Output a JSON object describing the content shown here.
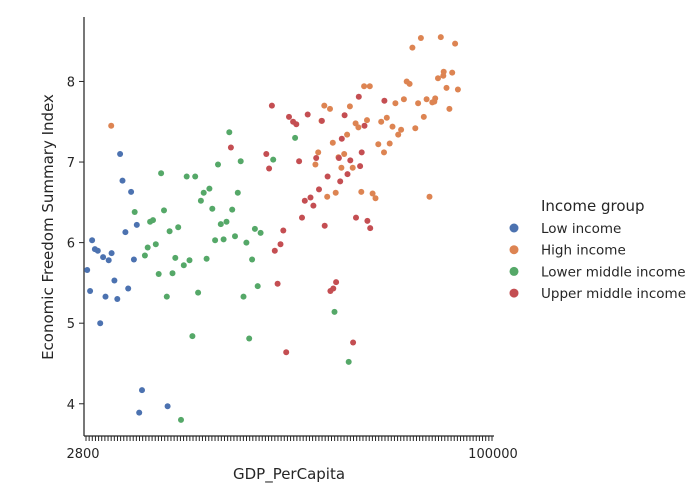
{
  "chart_data": {
    "type": "scatter",
    "title": "",
    "xlabel": "GDP_PerCapita",
    "ylabel": "Economic Freedom Summary Index",
    "xlim": [
      0,
      100
    ],
    "ylim": [
      3.6,
      8.8
    ],
    "y_ticks": [
      4,
      5,
      6,
      7,
      8
    ],
    "x_tick_labels": [
      "2800",
      "100000"
    ],
    "x_tick_count": 130,
    "grid": false,
    "legend_title": "Income group",
    "legend_position": "right",
    "series": [
      {
        "name": "Low income",
        "color": "#4c72b0",
        "points": [
          [
            0.3,
            5.66
          ],
          [
            1.0,
            5.4
          ],
          [
            1.5,
            6.03
          ],
          [
            2.2,
            5.92
          ],
          [
            2.9,
            5.9
          ],
          [
            3.5,
            5.0
          ],
          [
            4.2,
            5.82
          ],
          [
            4.8,
            5.33
          ],
          [
            5.6,
            5.78
          ],
          [
            6.3,
            5.87
          ],
          [
            7.0,
            5.53
          ],
          [
            7.7,
            5.3
          ],
          [
            8.4,
            7.1
          ],
          [
            9.0,
            6.77
          ],
          [
            9.7,
            6.13
          ],
          [
            10.4,
            5.43
          ],
          [
            11.1,
            6.63
          ],
          [
            11.8,
            5.79
          ],
          [
            12.5,
            6.22
          ],
          [
            13.1,
            3.89
          ],
          [
            13.8,
            4.17
          ],
          [
            20.1,
            3.97
          ]
        ]
      },
      {
        "name": "High income",
        "color": "#dd8452",
        "points": [
          [
            6.2,
            7.45
          ],
          [
            56.5,
            6.97
          ],
          [
            57.2,
            7.12
          ],
          [
            58.0,
            7.51
          ],
          [
            58.7,
            7.7
          ],
          [
            59.4,
            6.57
          ],
          [
            60.1,
            7.66
          ],
          [
            60.8,
            7.24
          ],
          [
            61.5,
            6.62
          ],
          [
            62.2,
            7.06
          ],
          [
            62.9,
            6.93
          ],
          [
            63.6,
            7.1
          ],
          [
            64.3,
            7.34
          ],
          [
            65.0,
            7.69
          ],
          [
            65.7,
            6.93
          ],
          [
            66.4,
            7.48
          ],
          [
            67.1,
            7.43
          ],
          [
            67.8,
            6.63
          ],
          [
            68.5,
            7.94
          ],
          [
            69.2,
            7.52
          ],
          [
            69.9,
            7.94
          ],
          [
            70.6,
            6.61
          ],
          [
            71.3,
            6.55
          ],
          [
            72.0,
            7.22
          ],
          [
            72.7,
            7.5
          ],
          [
            73.4,
            7.12
          ],
          [
            74.1,
            7.55
          ],
          [
            74.8,
            7.23
          ],
          [
            75.5,
            7.44
          ],
          [
            76.2,
            7.73
          ],
          [
            76.9,
            7.34
          ],
          [
            77.6,
            7.4
          ],
          [
            78.3,
            7.78
          ],
          [
            79.0,
            8.0
          ],
          [
            79.7,
            7.97
          ],
          [
            80.4,
            8.42
          ],
          [
            81.1,
            7.42
          ],
          [
            81.8,
            7.73
          ],
          [
            82.5,
            8.54
          ],
          [
            83.2,
            7.56
          ],
          [
            83.9,
            7.78
          ],
          [
            84.6,
            6.57
          ],
          [
            85.3,
            7.74
          ],
          [
            86.0,
            7.79
          ],
          [
            86.7,
            8.04
          ],
          [
            87.4,
            8.55
          ],
          [
            88.1,
            8.12
          ],
          [
            88.8,
            7.92
          ],
          [
            89.5,
            7.66
          ],
          [
            90.2,
            8.11
          ],
          [
            90.9,
            8.47
          ],
          [
            91.6,
            7.9
          ],
          [
            88.0,
            8.07
          ],
          [
            85.8,
            7.75
          ]
        ]
      },
      {
        "name": "Lower middle income",
        "color": "#55a868",
        "points": [
          [
            12.0,
            6.38
          ],
          [
            14.5,
            5.84
          ],
          [
            15.2,
            5.94
          ],
          [
            15.8,
            6.26
          ],
          [
            16.5,
            6.28
          ],
          [
            17.2,
            5.98
          ],
          [
            17.9,
            5.61
          ],
          [
            18.5,
            6.86
          ],
          [
            19.2,
            6.4
          ],
          [
            19.9,
            5.33
          ],
          [
            20.6,
            6.14
          ],
          [
            21.3,
            5.62
          ],
          [
            22.0,
            5.81
          ],
          [
            22.7,
            6.19
          ],
          [
            23.4,
            3.8
          ],
          [
            24.1,
            5.72
          ],
          [
            24.8,
            6.82
          ],
          [
            25.5,
            5.78
          ],
          [
            26.2,
            4.84
          ],
          [
            26.9,
            6.82
          ],
          [
            27.6,
            5.38
          ],
          [
            28.3,
            6.52
          ],
          [
            29.0,
            6.62
          ],
          [
            29.7,
            5.8
          ],
          [
            30.4,
            6.67
          ],
          [
            31.1,
            6.42
          ],
          [
            31.8,
            6.03
          ],
          [
            32.5,
            6.97
          ],
          [
            33.2,
            6.23
          ],
          [
            33.9,
            6.04
          ],
          [
            34.6,
            6.26
          ],
          [
            35.3,
            7.37
          ],
          [
            36.0,
            6.41
          ],
          [
            36.7,
            6.08
          ],
          [
            37.4,
            6.62
          ],
          [
            38.1,
            7.01
          ],
          [
            38.8,
            5.33
          ],
          [
            39.5,
            6.0
          ],
          [
            40.2,
            4.81
          ],
          [
            40.9,
            5.79
          ],
          [
            41.6,
            6.17
          ],
          [
            42.3,
            5.46
          ],
          [
            43.0,
            6.12
          ],
          [
            46.1,
            7.03
          ],
          [
            51.5,
            7.3
          ],
          [
            61.2,
            5.14
          ],
          [
            64.7,
            4.52
          ]
        ]
      },
      {
        "name": "Upper middle income",
        "color": "#c44e52",
        "points": [
          [
            35.7,
            7.18
          ],
          [
            44.4,
            7.1
          ],
          [
            45.1,
            6.92
          ],
          [
            45.8,
            7.7
          ],
          [
            46.5,
            5.9
          ],
          [
            47.2,
            5.49
          ],
          [
            47.9,
            5.98
          ],
          [
            48.6,
            6.15
          ],
          [
            49.3,
            4.64
          ],
          [
            50.0,
            7.56
          ],
          [
            51.0,
            7.5
          ],
          [
            51.8,
            7.47
          ],
          [
            52.5,
            7.01
          ],
          [
            53.2,
            6.31
          ],
          [
            53.9,
            6.52
          ],
          [
            54.6,
            7.59
          ],
          [
            55.3,
            6.56
          ],
          [
            56.0,
            6.46
          ],
          [
            56.7,
            7.05
          ],
          [
            57.4,
            6.66
          ],
          [
            58.1,
            7.51
          ],
          [
            58.8,
            6.21
          ],
          [
            59.5,
            6.82
          ],
          [
            60.2,
            5.4
          ],
          [
            60.9,
            5.43
          ],
          [
            61.6,
            5.51
          ],
          [
            62.3,
            7.05
          ],
          [
            63.0,
            7.29
          ],
          [
            63.7,
            7.58
          ],
          [
            64.4,
            6.85
          ],
          [
            65.1,
            7.02
          ],
          [
            65.8,
            4.76
          ],
          [
            66.5,
            6.31
          ],
          [
            67.2,
            7.81
          ],
          [
            67.9,
            7.12
          ],
          [
            68.6,
            7.45
          ],
          [
            69.3,
            6.27
          ],
          [
            70.0,
            6.18
          ],
          [
            73.5,
            7.76
          ],
          [
            62.6,
            6.76
          ],
          [
            67.5,
            6.95
          ]
        ]
      }
    ]
  }
}
